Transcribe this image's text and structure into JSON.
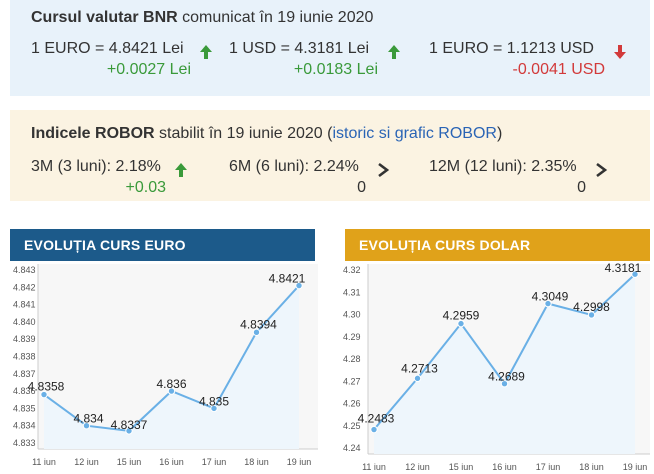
{
  "bnr": {
    "title_bold": "Cursul valutar BNR",
    "title_rest": " comunicat în 19 iunie 2020",
    "rates": [
      {
        "label": "1 EURO = 4.8421 Lei",
        "delta": "+0.0027 Lei",
        "direction": "up"
      },
      {
        "label": "1 USD = 4.3181 Lei",
        "delta": "+0.0183 Lei",
        "direction": "up"
      },
      {
        "label": "1 EURO = 1.1213 USD",
        "delta": "-0.0041 USD",
        "direction": "down"
      }
    ]
  },
  "robor": {
    "title_bold": "Indicele ROBOR",
    "title_rest": " stabilit în 19 iunie 2020 (",
    "link": "istoric si grafic ROBOR",
    "title_end": ")",
    "items": [
      {
        "label": "3M (3 luni): 2.18%",
        "delta": "+0.03",
        "direction": "up"
      },
      {
        "label": "6M (6 luni): 2.24%",
        "delta": "0",
        "direction": "flat"
      },
      {
        "label": "12M (12 luni): 2.35%",
        "delta": "0",
        "direction": "flat"
      }
    ]
  },
  "colors": {
    "up": "#3a9a3a",
    "down": "#d23a3a",
    "line": "#6ab0e6",
    "euro_header": "#1c5a8a",
    "dolar_header": "#e0a21a"
  },
  "chart_data": [
    {
      "type": "line",
      "title": "EVOLUȚIA CURS EURO",
      "x": [
        "11 iun",
        "12 iun",
        "15 iun",
        "16 iun",
        "17 iun",
        "18 iun",
        "19 iun"
      ],
      "series": [
        {
          "values": [
            4.8358,
            4.834,
            4.8337,
            4.836,
            4.835,
            4.8394,
            4.8421
          ],
          "labels": [
            "4.8358",
            "4.834",
            "4.8337",
            "4.836",
            "4.835",
            "4.8394",
            "4.8421"
          ]
        }
      ],
      "ylim": [
        4.833,
        4.843
      ],
      "yticks": [
        "4.833",
        "4.834",
        "4.835",
        "4.836",
        "4.837",
        "4.838",
        "4.839",
        "4.840",
        "4.841",
        "4.842",
        "4.843"
      ],
      "grid": false
    },
    {
      "type": "line",
      "title": "EVOLUȚIA CURS DOLAR",
      "x": [
        "11 iun",
        "12 iun",
        "15 iun",
        "16 iun",
        "17 iun",
        "18 iun",
        "19 iun"
      ],
      "series": [
        {
          "values": [
            4.2483,
            4.2713,
            4.2959,
            4.2689,
            4.3049,
            4.2998,
            4.3181
          ],
          "labels": [
            "4.2483",
            "4.2713",
            "4.2959",
            "4.2689",
            "4.3049",
            "4.2998",
            "4.3181"
          ]
        }
      ],
      "ylim": [
        4.24,
        4.32
      ],
      "yticks": [
        "4.24",
        "4.25",
        "4.26",
        "4.27",
        "4.28",
        "4.29",
        "4.30",
        "4.31",
        "4.32"
      ],
      "grid": false
    }
  ]
}
